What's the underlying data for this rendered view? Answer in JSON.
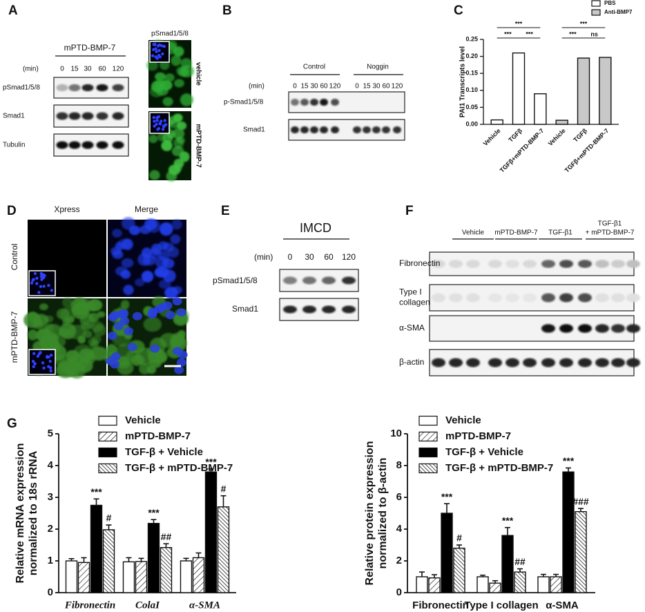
{
  "panel_a": {
    "label": "A",
    "treatment": "mPTD-BMP-7",
    "time_unit": "(min)",
    "times": [
      0,
      15,
      30,
      60,
      120
    ],
    "rows": [
      "pSmad1/5/8",
      "Smad1",
      "Tubulin"
    ],
    "image_title": "pSmad1/5/8",
    "image_rows": [
      "vehicle",
      "mPTD-BMP-7"
    ]
  },
  "panel_b": {
    "label": "B",
    "groups": [
      "Control",
      "Noggin"
    ],
    "time_unit": "(min)",
    "times": [
      0,
      15,
      30,
      60,
      120
    ],
    "rows": [
      "p-Smad1/5/8",
      "Smad1"
    ]
  },
  "panel_c": {
    "label": "C"
  },
  "panel_d": {
    "label": "D",
    "columns": [
      "Xpress",
      "Merge"
    ],
    "rows": [
      "Control",
      "mPTD-BMP-7"
    ]
  },
  "panel_e": {
    "label": "E",
    "cell_line": "IMCD",
    "time_unit": "(min)",
    "times": [
      0,
      30,
      60,
      120
    ],
    "rows": [
      "pSmad1/5/8",
      "Smad1"
    ]
  },
  "panel_f": {
    "label": "F",
    "groups": [
      [
        "Vehicle"
      ],
      [
        "mPTD-BMP-7"
      ],
      [
        "TGF-β1"
      ],
      [
        "TGF-β1",
        "+ mPTD-BMP-7"
      ]
    ],
    "rows": [
      [
        "Fibronectin"
      ],
      [
        "Type I",
        "collagen"
      ],
      [
        "α-SMA"
      ],
      [
        "β-actin"
      ]
    ]
  },
  "panel_g": {
    "label": "G"
  },
  "chart_data": [
    {
      "type": "bar",
      "ylabel": "PAI1 Transcripts level",
      "categories": [
        "Vehicle",
        "TGFβ",
        "TGFβ+mPTD-BMP-7",
        "Vehicle",
        "TGFβ",
        "TGFβ+mPTD-BMP-7"
      ],
      "series": [
        {
          "name": "PBS",
          "color": "#ffffff",
          "values": [
            0.013,
            0.21,
            0.09,
            null,
            null,
            null
          ]
        },
        {
          "name": "Anti-BMP7",
          "color": "#c8c8c8",
          "values": [
            null,
            null,
            null,
            0.012,
            0.195,
            0.197
          ]
        }
      ],
      "ylim": [
        0,
        0.25
      ],
      "yticks": [
        {
          "value": 0,
          "label": "0.00"
        },
        {
          "value": 0.05,
          "label": "0.05"
        },
        {
          "value": 0.1,
          "label": "0.10"
        },
        {
          "value": 0.15,
          "label": "0.15"
        },
        {
          "value": 0.2,
          "label": "0.20"
        },
        {
          "value": 0.25,
          "label": "0.25"
        }
      ],
      "annotations": [
        "***",
        "***",
        "***",
        "***",
        "***",
        "ns"
      ],
      "legend": "top-right"
    },
    {
      "type": "bar",
      "ylabel": [
        "Relative mRNA expression",
        "normalized to 18s rRNA"
      ],
      "categories": [
        "Fibronectin",
        "ColaI",
        "α-SMA"
      ],
      "category_style": "italic",
      "series": [
        {
          "name": "Vehicle",
          "color": "#ffffff",
          "values": [
            1.0,
            0.97,
            1.0
          ],
          "errors": [
            0.07,
            0.13,
            0.08
          ]
        },
        {
          "name": "mPTD-BMP-7",
          "color": "#ffffff",
          "pattern": "hatch",
          "values": [
            0.95,
            0.98,
            1.1
          ],
          "errors": [
            0.15,
            0.1,
            0.15
          ]
        },
        {
          "name": "TGF-β + Vehicle",
          "color": "#000000",
          "values": [
            2.75,
            2.18,
            3.8
          ],
          "errors": [
            0.2,
            0.12,
            0.1
          ],
          "labels": [
            "***",
            "***",
            "***"
          ]
        },
        {
          "name": "TGF-β + mPTD-BMP-7",
          "color": "#ffffff",
          "pattern": "hatch-dense",
          "values": [
            1.98,
            1.42,
            2.7
          ],
          "errors": [
            0.15,
            0.12,
            0.35
          ],
          "labels": [
            "#",
            "##",
            "#"
          ]
        }
      ],
      "ylim": [
        0,
        5
      ],
      "yticks": [
        0,
        1,
        2,
        3,
        4,
        5
      ],
      "legend": "top"
    },
    {
      "type": "bar",
      "ylabel": [
        "Relative protein expression",
        "normalized to β-actin"
      ],
      "categories": [
        "Fibronectin",
        "Type I collagen",
        "α-SMA"
      ],
      "series": [
        {
          "name": "Vehicle",
          "color": "#ffffff",
          "values": [
            1.0,
            1.0,
            1.0
          ],
          "errors": [
            0.3,
            0.1,
            0.15
          ]
        },
        {
          "name": "mPTD-BMP-7",
          "color": "#ffffff",
          "pattern": "hatch",
          "values": [
            0.93,
            0.6,
            1.0
          ],
          "errors": [
            0.2,
            0.15,
            0.15
          ]
        },
        {
          "name": "TGF-β + Vehicle",
          "color": "#000000",
          "values": [
            5.0,
            3.6,
            7.6
          ],
          "errors": [
            0.6,
            0.5,
            0.25
          ],
          "labels": [
            "***",
            "***",
            "***"
          ]
        },
        {
          "name": "TGF-β + mPTD-BMP-7",
          "color": "#ffffff",
          "pattern": "hatch-dense",
          "values": [
            2.8,
            1.3,
            5.1
          ],
          "errors": [
            0.2,
            0.2,
            0.2
          ],
          "labels": [
            "#",
            "##",
            "###"
          ]
        }
      ],
      "ylim": [
        0,
        10
      ],
      "yticks": [
        0,
        2,
        4,
        6,
        8,
        10
      ],
      "legend": "top"
    }
  ]
}
